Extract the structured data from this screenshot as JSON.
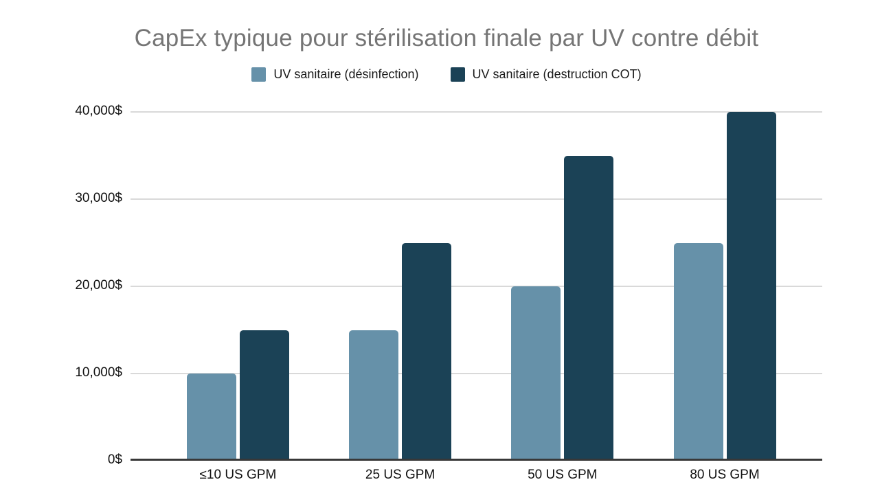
{
  "chart_data": {
    "type": "bar",
    "title": "CapEx typique pour stérilisation finale par UV contre débit",
    "categories": [
      "≤10 US GPM",
      "25 US GPM",
      "50 US GPM",
      "80 US GPM"
    ],
    "series": [
      {
        "name": "UV sanitaire (désinfection)",
        "color": "#6691a9",
        "values": [
          10000,
          15000,
          20000,
          25000
        ]
      },
      {
        "name": "UV sanitaire (destruction COT)",
        "color": "#1b4256",
        "values": [
          15000,
          25000,
          35000,
          40000
        ]
      }
    ],
    "xlabel": "",
    "ylabel": "",
    "ylim": [
      0,
      40000
    ],
    "yticks": [
      0,
      10000,
      20000,
      30000,
      40000
    ],
    "ytick_labels": [
      "0$",
      "10,000$",
      "20,000$",
      "30,000$",
      "40,000$"
    ],
    "grid": true,
    "legend_position": "top",
    "title_color": "#757575",
    "gridline_color": "#d9d9d9",
    "axis_color": "#383838",
    "tick_label_color": "#111111"
  }
}
